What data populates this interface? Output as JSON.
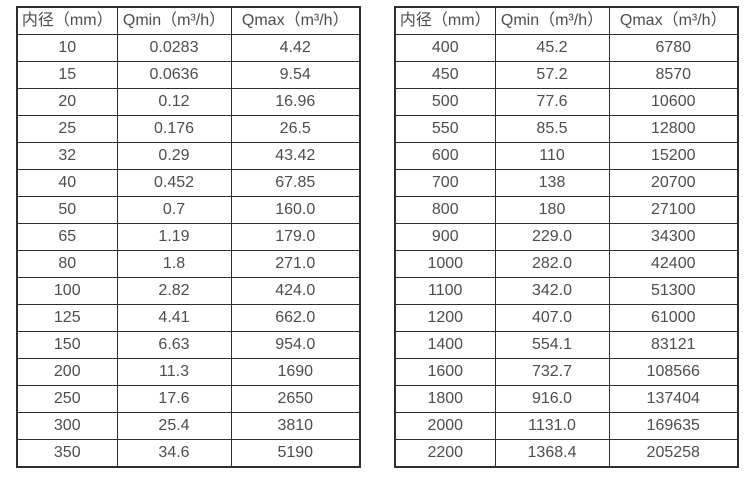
{
  "app": {
    "background_color": "#ffffff",
    "border_color": "#2e2e2e",
    "text_color": "#4d4d4d"
  },
  "tables": [
    {
      "name": "flow-table-small-diameters",
      "headers": [
        "内径（mm）",
        "Qmin（m³/h）",
        "Qmax（m³/h）"
      ],
      "rows": [
        [
          "10",
          "0.0283",
          "4.42"
        ],
        [
          "15",
          "0.0636",
          "9.54"
        ],
        [
          "20",
          "0.12",
          "16.96"
        ],
        [
          "25",
          "0.176",
          "26.5"
        ],
        [
          "32",
          "0.29",
          "43.42"
        ],
        [
          "40",
          "0.452",
          "67.85"
        ],
        [
          "50",
          "0.7",
          "160.0"
        ],
        [
          "65",
          "1.19",
          "179.0"
        ],
        [
          "80",
          "1.8",
          "271.0"
        ],
        [
          "100",
          "2.82",
          "424.0"
        ],
        [
          "125",
          "4.41",
          "662.0"
        ],
        [
          "150",
          "6.63",
          "954.0"
        ],
        [
          "200",
          "11.3",
          "1690"
        ],
        [
          "250",
          "17.6",
          "2650"
        ],
        [
          "300",
          "25.4",
          "3810"
        ],
        [
          "350",
          "34.6",
          "5190"
        ]
      ]
    },
    {
      "name": "flow-table-large-diameters",
      "headers": [
        "内径（mm）",
        "Qmin（m³/h）",
        "Qmax（m³/h）"
      ],
      "rows": [
        [
          "400",
          "45.2",
          "6780"
        ],
        [
          "450",
          "57.2",
          "8570"
        ],
        [
          "500",
          "77.6",
          "10600"
        ],
        [
          "550",
          "85.5",
          "12800"
        ],
        [
          "600",
          "110",
          "15200"
        ],
        [
          "700",
          "138",
          "20700"
        ],
        [
          "800",
          "180",
          "27100"
        ],
        [
          "900",
          "229.0",
          "34300"
        ],
        [
          "1000",
          "282.0",
          "42400"
        ],
        [
          "1100",
          "342.0",
          "51300"
        ],
        [
          "1200",
          "407.0",
          "61000"
        ],
        [
          "1400",
          "554.1",
          "83121"
        ],
        [
          "1600",
          "732.7",
          "108566"
        ],
        [
          "1800",
          "916.0",
          "137404"
        ],
        [
          "2000",
          "1131.0",
          "169635"
        ],
        [
          "2200",
          "1368.4",
          "205258"
        ]
      ]
    }
  ]
}
